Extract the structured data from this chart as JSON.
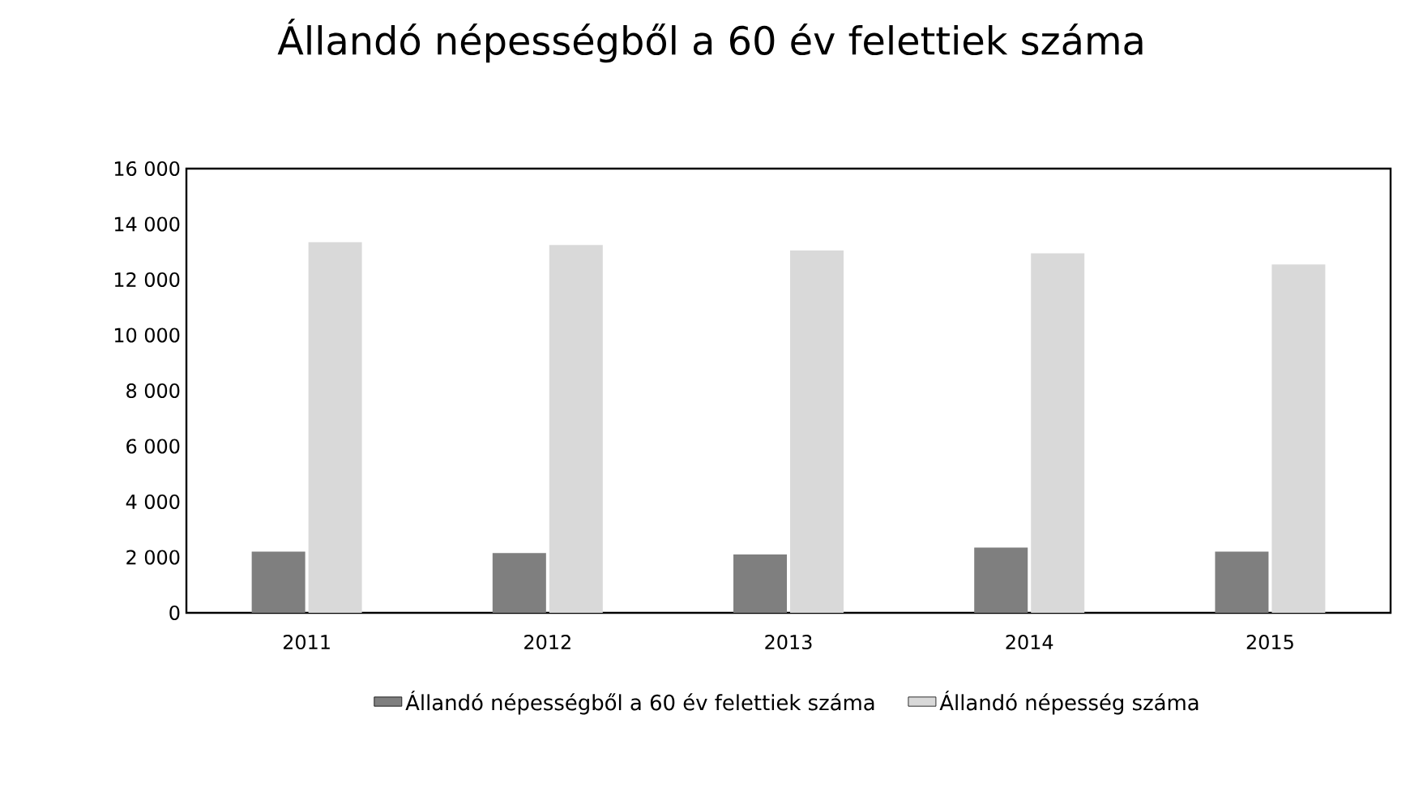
{
  "chart_data": {
    "type": "bar",
    "title": "Állandó népességből a 60 év felettiek száma",
    "categories": [
      "2011",
      "2012",
      "2013",
      "2014",
      "2015"
    ],
    "series": [
      {
        "name": "Állandó népességből a 60 év felettiek száma",
        "color": "#7f7f7f",
        "values": [
          2200,
          2150,
          2100,
          2350,
          2200
        ]
      },
      {
        "name": "Állandó népesség száma",
        "color": "#d9d9d9",
        "values": [
          13350,
          13250,
          13050,
          12950,
          12550
        ]
      }
    ],
    "ylim": [
      0,
      16000
    ],
    "yticks": [
      {
        "value": 0,
        "label": "0"
      },
      {
        "value": 2000,
        "label": "2 000"
      },
      {
        "value": 4000,
        "label": "4 000"
      },
      {
        "value": 6000,
        "label": "6 000"
      },
      {
        "value": 8000,
        "label": "8 000"
      },
      {
        "value": 10000,
        "label": "10 000"
      },
      {
        "value": 12000,
        "label": "12 000"
      },
      {
        "value": 14000,
        "label": "14 000"
      },
      {
        "value": 16000,
        "label": "16 000"
      }
    ],
    "legend": "bottom"
  }
}
